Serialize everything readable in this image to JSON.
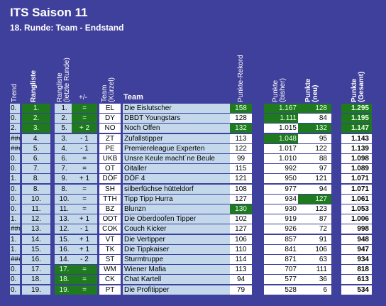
{
  "title": "ITS Saison 11",
  "subtitle": "18. Runde: Team - Endstand",
  "headers": {
    "trend": "Trend",
    "rank": "Rangliste",
    "prev_rank_1": "Rangliste",
    "prev_rank_2": "(letzte Runde)",
    "delta": "+/-",
    "code_1": "Team",
    "code_2": "(Kürzel)",
    "team": "Team",
    "record": "Punkte-Rekord",
    "prev_pts_1": "Punkte",
    "prev_pts_2": "(bisher)",
    "new_pts_1": "Punkte",
    "new_pts_2": "(neu)",
    "total_1": "Punkte",
    "total_2": "(Gesamt)"
  },
  "rows": [
    {
      "trend": "0.",
      "rank": "1.",
      "prev": "1.",
      "delta": "=",
      "code": "EL",
      "team": "Die Eislutscher",
      "record": "158",
      "prev_pts": "1.167",
      "new_pts": "128",
      "total": "1.295",
      "g": [
        "rank",
        "delta",
        "record",
        "prev_pts",
        "new_pts",
        "total"
      ]
    },
    {
      "trend": "0.",
      "rank": "2.",
      "prev": "2.",
      "delta": "=",
      "code": "DY",
      "team": "DBDT Youngstars",
      "record": "128",
      "prev_pts": "1.111",
      "new_pts": "84",
      "total": "1.195",
      "g": [
        "rank",
        "delta",
        "prev_pts",
        "total"
      ]
    },
    {
      "trend": "2.",
      "rank": "3.",
      "prev": "5.",
      "delta": "+ 2",
      "code": "NO",
      "team": "Noch Offen",
      "record": "132",
      "prev_pts": "1.015",
      "new_pts": "132",
      "total": "1.147",
      "g": [
        "rank",
        "delta",
        "record",
        "new_pts",
        "total"
      ]
    },
    {
      "trend": "###",
      "rank": "4.",
      "prev": "3.",
      "delta": "- 1",
      "code": "ZT",
      "team": "Zufallstipper",
      "record": "113",
      "prev_pts": "1.048",
      "new_pts": "95",
      "total": "1.143",
      "g": [
        "prev_pts"
      ]
    },
    {
      "trend": "###",
      "rank": "5.",
      "prev": "4.",
      "delta": "- 1",
      "code": "PE",
      "team": "Premiereleague Experten",
      "record": "122",
      "prev_pts": "1.017",
      "new_pts": "122",
      "total": "1.139",
      "g": []
    },
    {
      "trend": "0.",
      "rank": "6.",
      "prev": "6.",
      "delta": "=",
      "code": "UKB",
      "team": "Unsre Keule macht´ne Beule",
      "record": "99",
      "prev_pts": "1.010",
      "new_pts": "88",
      "total": "1.098",
      "g": []
    },
    {
      "trend": "0.",
      "rank": "7.",
      "prev": "7.",
      "delta": "=",
      "code": "OT",
      "team": "Oitaller",
      "record": "115",
      "prev_pts": "992",
      "new_pts": "97",
      "total": "1.089",
      "g": []
    },
    {
      "trend": "1.",
      "rank": "8.",
      "prev": "9.",
      "delta": "+ 1",
      "code": "DÖF",
      "team": "DÖF 4",
      "record": "121",
      "prev_pts": "950",
      "new_pts": "121",
      "total": "1.071",
      "g": []
    },
    {
      "trend": "0.",
      "rank": "8.",
      "prev": "8.",
      "delta": "=",
      "code": "SH",
      "team": "silberfüchse hütteldorf",
      "record": "108",
      "prev_pts": "977",
      "new_pts": "94",
      "total": "1.071",
      "g": []
    },
    {
      "trend": "0.",
      "rank": "10.",
      "prev": "10.",
      "delta": "=",
      "code": "TTH",
      "team": "Tipp Tipp Hurra",
      "record": "127",
      "prev_pts": "934",
      "new_pts": "127",
      "total": "1.061",
      "g": [
        "new_pts"
      ]
    },
    {
      "trend": "0.",
      "rank": "11.",
      "prev": "11.",
      "delta": "=",
      "code": "BZ",
      "team": "Blunzn",
      "record": "130",
      "prev_pts": "930",
      "new_pts": "123",
      "total": "1.053",
      "g": [
        "record"
      ]
    },
    {
      "trend": "1.",
      "rank": "12.",
      "prev": "13.",
      "delta": "+ 1",
      "code": "ODT",
      "team": "Die Oberdoofen Tipper",
      "record": "102",
      "prev_pts": "919",
      "new_pts": "87",
      "total": "1.006",
      "g": []
    },
    {
      "trend": "###",
      "rank": "13.",
      "prev": "12.",
      "delta": "- 1",
      "code": "COK",
      "team": "Couch Kicker",
      "record": "127",
      "prev_pts": "926",
      "new_pts": "72",
      "total": "998",
      "g": []
    },
    {
      "trend": "1.",
      "rank": "14.",
      "prev": "15.",
      "delta": "+ 1",
      "code": "VT",
      "team": "Die Vertipper",
      "record": "106",
      "prev_pts": "857",
      "new_pts": "91",
      "total": "948",
      "g": []
    },
    {
      "trend": "1.",
      "rank": "15.",
      "prev": "16.",
      "delta": "+ 1",
      "code": "TK",
      "team": "Die Tippkaiser",
      "record": "110",
      "prev_pts": "841",
      "new_pts": "106",
      "total": "947",
      "g": []
    },
    {
      "trend": "###",
      "rank": "16.",
      "prev": "14.",
      "delta": "- 2",
      "code": "ST",
      "team": "Sturmtruppe",
      "record": "114",
      "prev_pts": "871",
      "new_pts": "63",
      "total": "934",
      "g": []
    },
    {
      "trend": "0.",
      "rank": "17.",
      "prev": "17.",
      "delta": "=",
      "code": "WM",
      "team": "Wiener Mafia",
      "record": "113",
      "prev_pts": "707",
      "new_pts": "111",
      "total": "818",
      "g": [
        "prev",
        "delta"
      ]
    },
    {
      "trend": "0.",
      "rank": "18.",
      "prev": "18.",
      "delta": "=",
      "code": "CK",
      "team": "Chat Kartell",
      "record": "94",
      "prev_pts": "577",
      "new_pts": "36",
      "total": "613",
      "g": [
        "prev",
        "delta"
      ]
    },
    {
      "trend": "0.",
      "rank": "19.",
      "prev": "19.",
      "delta": "=",
      "code": "PT",
      "team": "Die Profitipper",
      "record": "79",
      "prev_pts": "528",
      "new_pts": "6",
      "total": "534",
      "g": [
        "prev",
        "delta"
      ]
    }
  ]
}
